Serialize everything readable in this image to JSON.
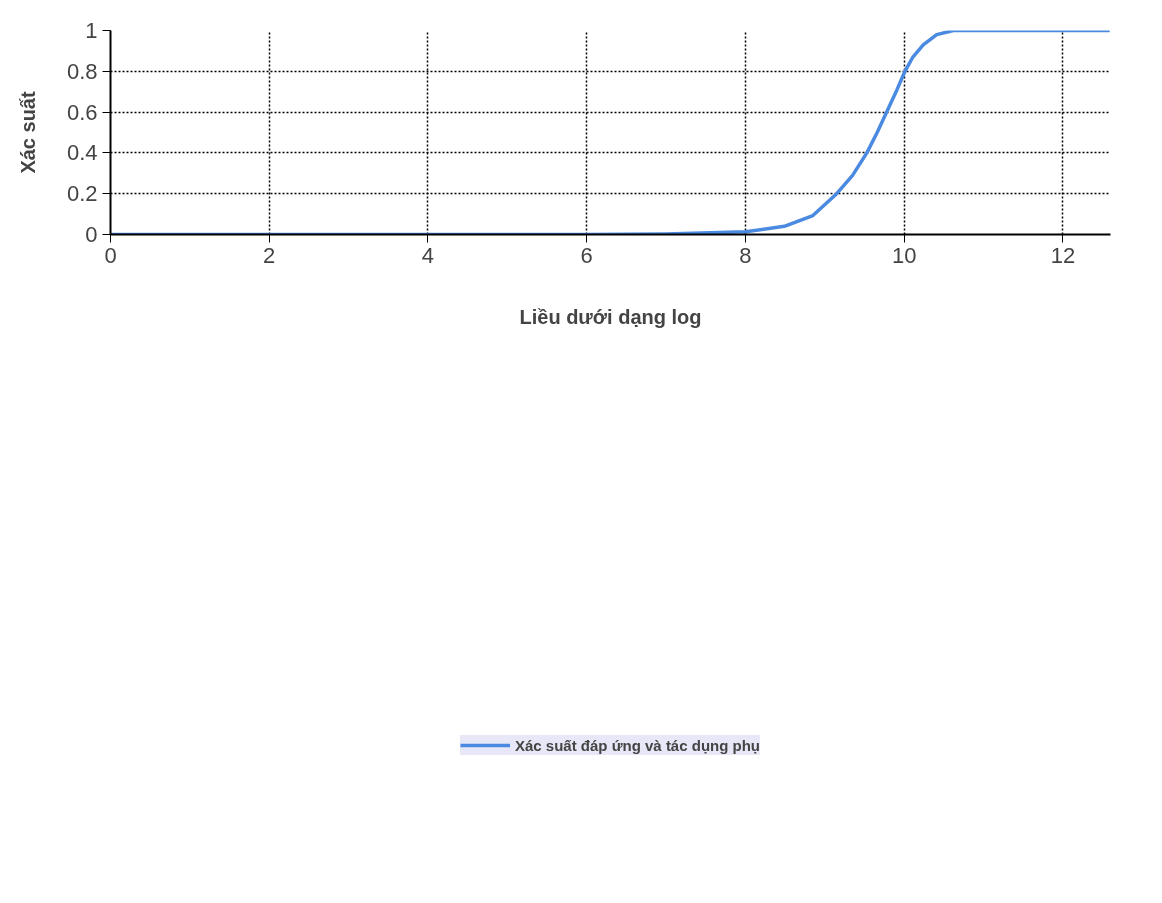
{
  "chart_data": {
    "type": "line",
    "xlabel": "Liều dưới dạng log",
    "ylabel": "Xác suất",
    "x": [
      0,
      2,
      4,
      6,
      7,
      8,
      8.49,
      8.85,
      9.15,
      9.35,
      9.53,
      9.66,
      9.78,
      9.91,
      10.01,
      10.11,
      10.24,
      10.41,
      10.62,
      11,
      12,
      12.59
    ],
    "series": [
      {
        "name": "Xác suất đáp ứng và tác dụng phụ",
        "color": "#4a8ae0",
        "values": [
          0,
          0,
          0,
          0,
          0.003,
          0.013,
          0.04,
          0.093,
          0.2,
          0.29,
          0.4,
          0.5,
          0.6,
          0.71,
          0.8,
          0.87,
          0.93,
          0.98,
          1,
          1,
          1,
          1
        ]
      }
    ],
    "xlim": [
      0,
      12.6
    ],
    "ylim": [
      0,
      1.0
    ],
    "xticks": [
      0,
      2,
      4,
      6,
      8,
      10,
      12
    ],
    "yticks": [
      0,
      0.2,
      0.4,
      0.6,
      0.8,
      1
    ],
    "grid": true,
    "legend": "bottom",
    "line_style": "solid",
    "marker": "none"
  }
}
